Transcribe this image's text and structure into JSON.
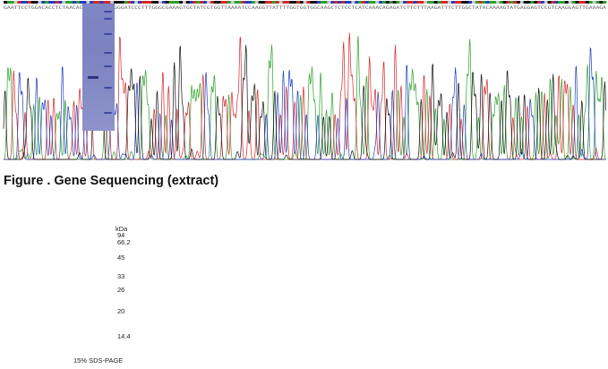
{
  "sequence": {
    "text": "GAATTCCTGGACACCTCTAACACCTCTTCTTGGGGATCCCTTTGGGCGAAAGTGCTATCGTGGTTAAAATCCAAGGTTATTTTGGTGGTGGCAAGCTCTCCTCATCAAACAGAGATCTTCTTTAAGATTTCTTGGCTATACAAAAGTATGAGGAGTCCGTCAAGGAGTTGAAAGA",
    "colors": {
      "A": "#2ca02c",
      "C": "#1f3fbf",
      "G": "#111111",
      "T": "#d62728"
    }
  },
  "figure_caption": "Figure . Gene Sequencing (extract)",
  "gel": {
    "unit_label": "kDa",
    "markers": [
      "94",
      "66.2",
      "45",
      "33",
      "26",
      "20",
      "14.4"
    ],
    "caption": "15% SDS-PAGE"
  }
}
